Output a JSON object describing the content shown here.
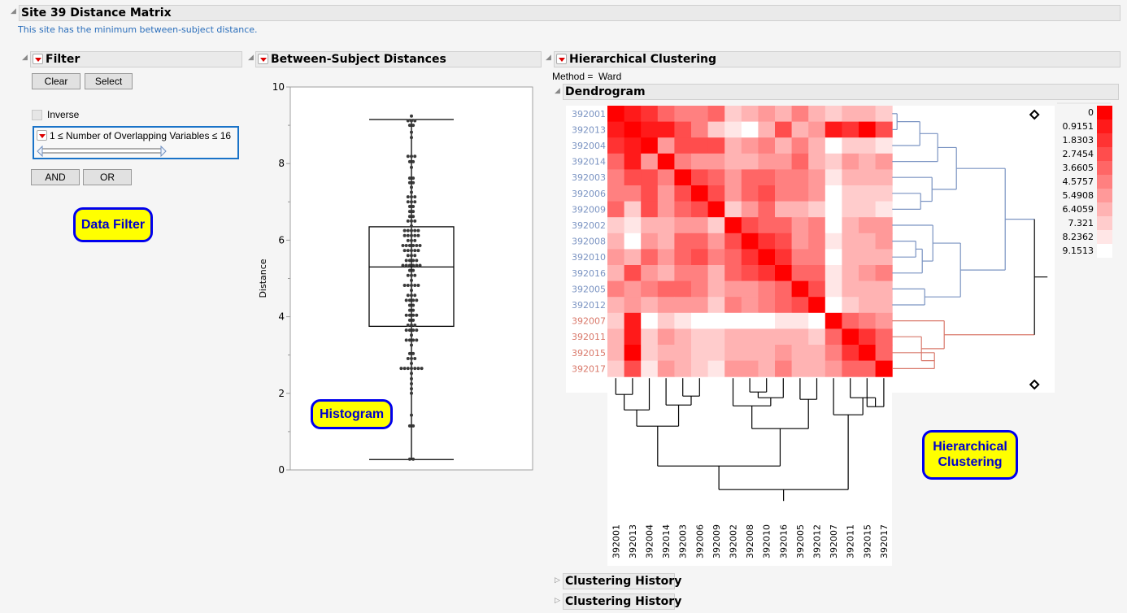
{
  "report": {
    "title": "Site 39 Distance Matrix",
    "note": "This site has the minimum between-subject distance."
  },
  "filter": {
    "title": "Filter",
    "clear_label": "Clear",
    "select_label": "Select",
    "inverse_label": "Inverse",
    "inverse_checked": false,
    "range_label": "1 ≤ Number of Overlapping Variables  ≤ 16",
    "range_min": 1,
    "range_max": 16,
    "and_label": "AND",
    "or_label": "OR"
  },
  "callouts": {
    "data_filter": "Data Filter",
    "histogram": "Histogram",
    "hier_line1": "Hierarchical",
    "hier_line2": "Clustering"
  },
  "distances": {
    "title": "Between-Subject Distances"
  },
  "clustering": {
    "title": "Hierarchical Clustering",
    "method": "Method =  Ward",
    "dendrogram_title": "Dendrogram",
    "history_1": "Clustering History",
    "history_2": "Clustering History",
    "cluster_colors": {
      "blue": "#7a93c2",
      "red": "#d9786a"
    }
  },
  "chart_data": [
    {
      "type": "box",
      "title": "Between-Subject Distances",
      "ylabel": "Distance",
      "ylim": [
        0,
        10
      ],
      "yticks": [
        "0",
        "2",
        "4",
        "6",
        "8",
        "10"
      ],
      "box": {
        "min": 0.27,
        "q1": 3.75,
        "median": 5.3,
        "q3": 6.35,
        "max": 9.15
      },
      "points": [
        {
          "y": 0.28,
          "n": 2
        },
        {
          "y": 1.15,
          "n": 2
        },
        {
          "y": 1.43,
          "n": 1
        },
        {
          "y": 2.0,
          "n": 1
        },
        {
          "y": 2.12,
          "n": 1
        },
        {
          "y": 2.25,
          "n": 1
        },
        {
          "y": 2.38,
          "n": 1
        },
        {
          "y": 2.52,
          "n": 1
        },
        {
          "y": 2.65,
          "n": 7
        },
        {
          "y": 2.78,
          "n": 1
        },
        {
          "y": 2.91,
          "n": 3
        },
        {
          "y": 3.04,
          "n": 2
        },
        {
          "y": 3.26,
          "n": 1
        },
        {
          "y": 3.39,
          "n": 4
        },
        {
          "y": 3.52,
          "n": 1
        },
        {
          "y": 3.65,
          "n": 4
        },
        {
          "y": 3.78,
          "n": 3
        },
        {
          "y": 3.91,
          "n": 2
        },
        {
          "y": 4.04,
          "n": 4
        },
        {
          "y": 4.17,
          "n": 2
        },
        {
          "y": 4.3,
          "n": 2
        },
        {
          "y": 4.43,
          "n": 4
        },
        {
          "y": 4.56,
          "n": 3
        },
        {
          "y": 4.69,
          "n": 1
        },
        {
          "y": 4.82,
          "n": 5
        },
        {
          "y": 4.95,
          "n": 1
        },
        {
          "y": 5.08,
          "n": 3
        },
        {
          "y": 5.21,
          "n": 2
        },
        {
          "y": 5.34,
          "n": 6
        },
        {
          "y": 5.47,
          "n": 4
        },
        {
          "y": 5.6,
          "n": 3
        },
        {
          "y": 5.73,
          "n": 5
        },
        {
          "y": 5.86,
          "n": 6
        },
        {
          "y": 5.99,
          "n": 3
        },
        {
          "y": 6.12,
          "n": 5
        },
        {
          "y": 6.25,
          "n": 5
        },
        {
          "y": 6.37,
          "n": 1
        },
        {
          "y": 6.5,
          "n": 3
        },
        {
          "y": 6.62,
          "n": 2
        },
        {
          "y": 6.75,
          "n": 2
        },
        {
          "y": 6.88,
          "n": 2
        },
        {
          "y": 7.0,
          "n": 3
        },
        {
          "y": 7.13,
          "n": 3
        },
        {
          "y": 7.25,
          "n": 1
        },
        {
          "y": 7.38,
          "n": 1
        },
        {
          "y": 7.5,
          "n": 2
        },
        {
          "y": 7.62,
          "n": 2
        },
        {
          "y": 7.9,
          "n": 1
        },
        {
          "y": 8.05,
          "n": 2
        },
        {
          "y": 8.19,
          "n": 3
        },
        {
          "y": 8.68,
          "n": 1
        },
        {
          "y": 8.82,
          "n": 1
        },
        {
          "y": 9.0,
          "n": 2
        },
        {
          "y": 9.12,
          "n": 3
        },
        {
          "y": 9.24,
          "n": 1
        }
      ]
    },
    {
      "type": "heatmap",
      "title": "Dendrogram",
      "labels": [
        "392001",
        "392013",
        "392004",
        "392014",
        "392003",
        "392006",
        "392009",
        "392002",
        "392008",
        "392010",
        "392016",
        "392005",
        "392012",
        "392007",
        "392011",
        "392015",
        "392017"
      ],
      "label_groups": [
        "blue",
        "blue",
        "blue",
        "blue",
        "blue",
        "blue",
        "blue",
        "blue",
        "blue",
        "blue",
        "blue",
        "blue",
        "blue",
        "red",
        "red",
        "red",
        "red"
      ],
      "legend": {
        "values": [
          "0",
          "0.9151",
          "1.8303",
          "2.7454",
          "3.6605",
          "4.5757",
          "5.4908",
          "6.4059",
          "7.321",
          "8.2362",
          "9.1513"
        ],
        "colors": [
          "#ff0000",
          "#ff1a1a",
          "#ff3333",
          "#ff4d4d",
          "#ff6666",
          "#ff8080",
          "#ff9999",
          "#ffb3b3",
          "#ffcccc",
          "#ffe6e6",
          "#ffffff"
        ]
      },
      "matrix_levels": [
        [
          0,
          1,
          2,
          4,
          5,
          5,
          4,
          8,
          7,
          6,
          7,
          5,
          7,
          8,
          7,
          7,
          8
        ],
        [
          1,
          0,
          1,
          1,
          3,
          5,
          8,
          9,
          10,
          7,
          3,
          7,
          6,
          1,
          2,
          0,
          3
        ],
        [
          2,
          1,
          0,
          6,
          3,
          3,
          3,
          7,
          6,
          5,
          7,
          5,
          7,
          10,
          8,
          8,
          9
        ],
        [
          4,
          1,
          6,
          0,
          5,
          6,
          6,
          7,
          7,
          6,
          6,
          4,
          7,
          8,
          6,
          7,
          6
        ],
        [
          5,
          3,
          3,
          5,
          0,
          3,
          4,
          6,
          4,
          4,
          5,
          5,
          6,
          9,
          7,
          7,
          7
        ],
        [
          5,
          5,
          3,
          6,
          3,
          0,
          3,
          6,
          4,
          3,
          5,
          5,
          6,
          10,
          8,
          8,
          8
        ],
        [
          4,
          8,
          3,
          6,
          4,
          3,
          0,
          8,
          6,
          4,
          7,
          7,
          8,
          10,
          8,
          8,
          9
        ],
        [
          8,
          9,
          7,
          7,
          6,
          6,
          8,
          0,
          3,
          4,
          4,
          6,
          5,
          10,
          7,
          6,
          6
        ],
        [
          7,
          10,
          6,
          7,
          4,
          4,
          6,
          3,
          0,
          2,
          3,
          6,
          5,
          9,
          7,
          7,
          6
        ],
        [
          6,
          7,
          4,
          6,
          4,
          3,
          5,
          4,
          2,
          0,
          2,
          5,
          5,
          10,
          7,
          7,
          7
        ],
        [
          7,
          3,
          6,
          7,
          5,
          5,
          7,
          4,
          3,
          2,
          0,
          4,
          4,
          9,
          7,
          6,
          5
        ],
        [
          5,
          6,
          5,
          4,
          4,
          5,
          7,
          6,
          6,
          5,
          4,
          0,
          3,
          9,
          7,
          7,
          7
        ],
        [
          7,
          6,
          7,
          6,
          6,
          6,
          8,
          5,
          6,
          5,
          4,
          3,
          0,
          10,
          8,
          7,
          7
        ],
        [
          8,
          1,
          10,
          8,
          9,
          10,
          10,
          10,
          10,
          10,
          9,
          9,
          10,
          0,
          4,
          5,
          6
        ],
        [
          7,
          1,
          8,
          6,
          7,
          8,
          8,
          7,
          7,
          7,
          7,
          7,
          8,
          4,
          0,
          2,
          4
        ],
        [
          7,
          0,
          8,
          7,
          7,
          8,
          8,
          7,
          7,
          7,
          6,
          7,
          7,
          5,
          2,
          0,
          4
        ],
        [
          8,
          3,
          9,
          6,
          7,
          8,
          9,
          6,
          6,
          7,
          5,
          7,
          7,
          6,
          4,
          4,
          0
        ]
      ],
      "row_dendrogram": "Ward clustering: two top clusters (blue: 392001–392012, red: 392007–392017)",
      "col_dendrogram": "Ward clustering of columns, same leaf order"
    }
  ]
}
